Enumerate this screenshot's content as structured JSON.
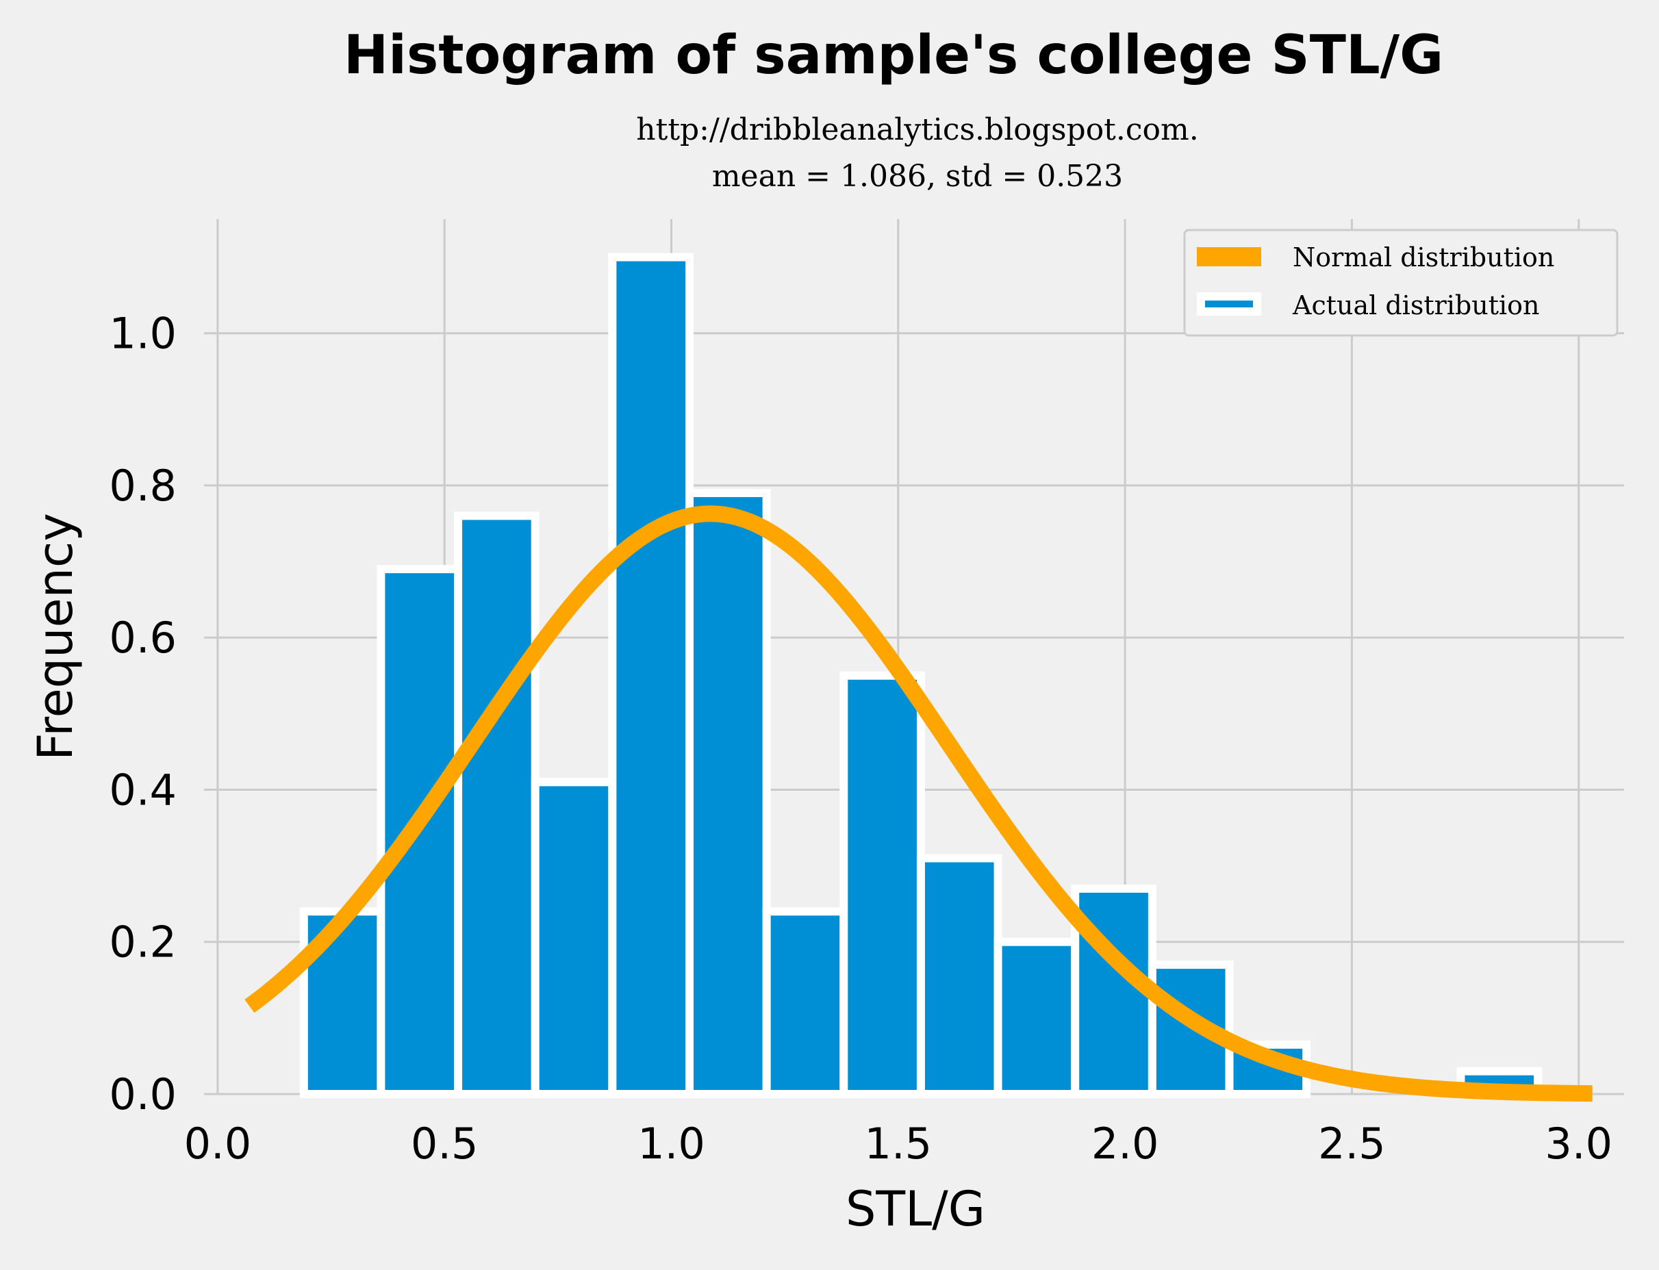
{
  "chart_data": {
    "type": "bar",
    "title": "Histogram of sample's college STL/G",
    "subtitle_lines": [
      "http://dribbleanalytics.blogspot.com.",
      "mean = 1.086, std = 0.523"
    ],
    "xlabel": "STL/G",
    "ylabel": "Frequency",
    "xlim": [
      -0.03,
      3.1
    ],
    "ylim": [
      0,
      1.15
    ],
    "xticks": [
      0.0,
      0.5,
      1.0,
      1.5,
      2.0,
      2.5,
      3.0
    ],
    "xtick_labels": [
      "0.0",
      "0.5",
      "1.0",
      "1.5",
      "2.0",
      "2.5",
      "3.0"
    ],
    "yticks": [
      0.0,
      0.2,
      0.4,
      0.6,
      0.8,
      1.0
    ],
    "ytick_labels": [
      "0.0",
      "0.2",
      "0.4",
      "0.6",
      "0.8",
      "1.0"
    ],
    "grid": true,
    "legend_position": "top-right",
    "series": [
      {
        "name": "Actual distribution",
        "kind": "histogram",
        "bins": [
          {
            "x0": 0.19,
            "x1": 0.36,
            "value": 0.24
          },
          {
            "x0": 0.36,
            "x1": 0.53,
            "value": 0.69
          },
          {
            "x0": 0.53,
            "x1": 0.7,
            "value": 0.76
          },
          {
            "x0": 0.7,
            "x1": 0.87,
            "value": 0.41
          },
          {
            "x0": 0.87,
            "x1": 1.04,
            "value": 1.1
          },
          {
            "x0": 1.04,
            "x1": 1.21,
            "value": 0.79
          },
          {
            "x0": 1.21,
            "x1": 1.38,
            "value": 0.24
          },
          {
            "x0": 1.38,
            "x1": 1.55,
            "value": 0.55
          },
          {
            "x0": 1.55,
            "x1": 1.72,
            "value": 0.31
          },
          {
            "x0": 1.72,
            "x1": 1.89,
            "value": 0.2
          },
          {
            "x0": 1.89,
            "x1": 2.06,
            "value": 0.27
          },
          {
            "x0": 2.06,
            "x1": 2.23,
            "value": 0.17
          },
          {
            "x0": 2.23,
            "x1": 2.4,
            "value": 0.065
          },
          {
            "x0": 2.4,
            "x1": 2.57,
            "value": 0.0
          },
          {
            "x0": 2.57,
            "x1": 2.74,
            "value": 0.0
          },
          {
            "x0": 2.74,
            "x1": 2.91,
            "value": 0.03
          }
        ]
      },
      {
        "name": "Normal distribution",
        "kind": "line",
        "mean": 1.086,
        "std": 0.523,
        "x_range": [
          0.07,
          3.03
        ]
      }
    ]
  },
  "colors": {
    "background": "#f0f0f0",
    "bars": "#008fd5",
    "bar_edge": "#ffffff",
    "curve": "#ffa500",
    "grid": "#cbcbcb"
  }
}
